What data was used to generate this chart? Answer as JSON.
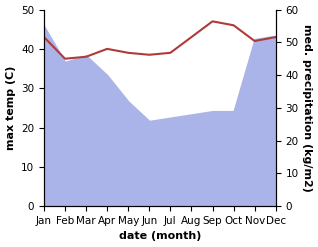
{
  "months": [
    "Jan",
    "Feb",
    "Mar",
    "Apr",
    "May",
    "Jun",
    "Jul",
    "Aug",
    "Sep",
    "Oct",
    "Nov",
    "Dec"
  ],
  "temperature": [
    43,
    37.5,
    38,
    40,
    39,
    38.5,
    39,
    43,
    47,
    46,
    42,
    43
  ],
  "precipitation": [
    55,
    44,
    46,
    40,
    32,
    26,
    27,
    28,
    29,
    29,
    51,
    52
  ],
  "temp_color": "#b03a3a",
  "precip_color": "#aab4e8",
  "background_color": "#ffffff",
  "ylabel_left": "max temp (C)",
  "ylabel_right": "med. precipitation (kg/m2)",
  "xlabel": "date (month)",
  "ylim_left": [
    0,
    50
  ],
  "ylim_right": [
    0,
    60
  ],
  "yticks_left": [
    0,
    10,
    20,
    30,
    40,
    50
  ],
  "yticks_right": [
    0,
    10,
    20,
    30,
    40,
    50,
    60
  ],
  "label_fontsize": 8,
  "tick_fontsize": 7.5
}
